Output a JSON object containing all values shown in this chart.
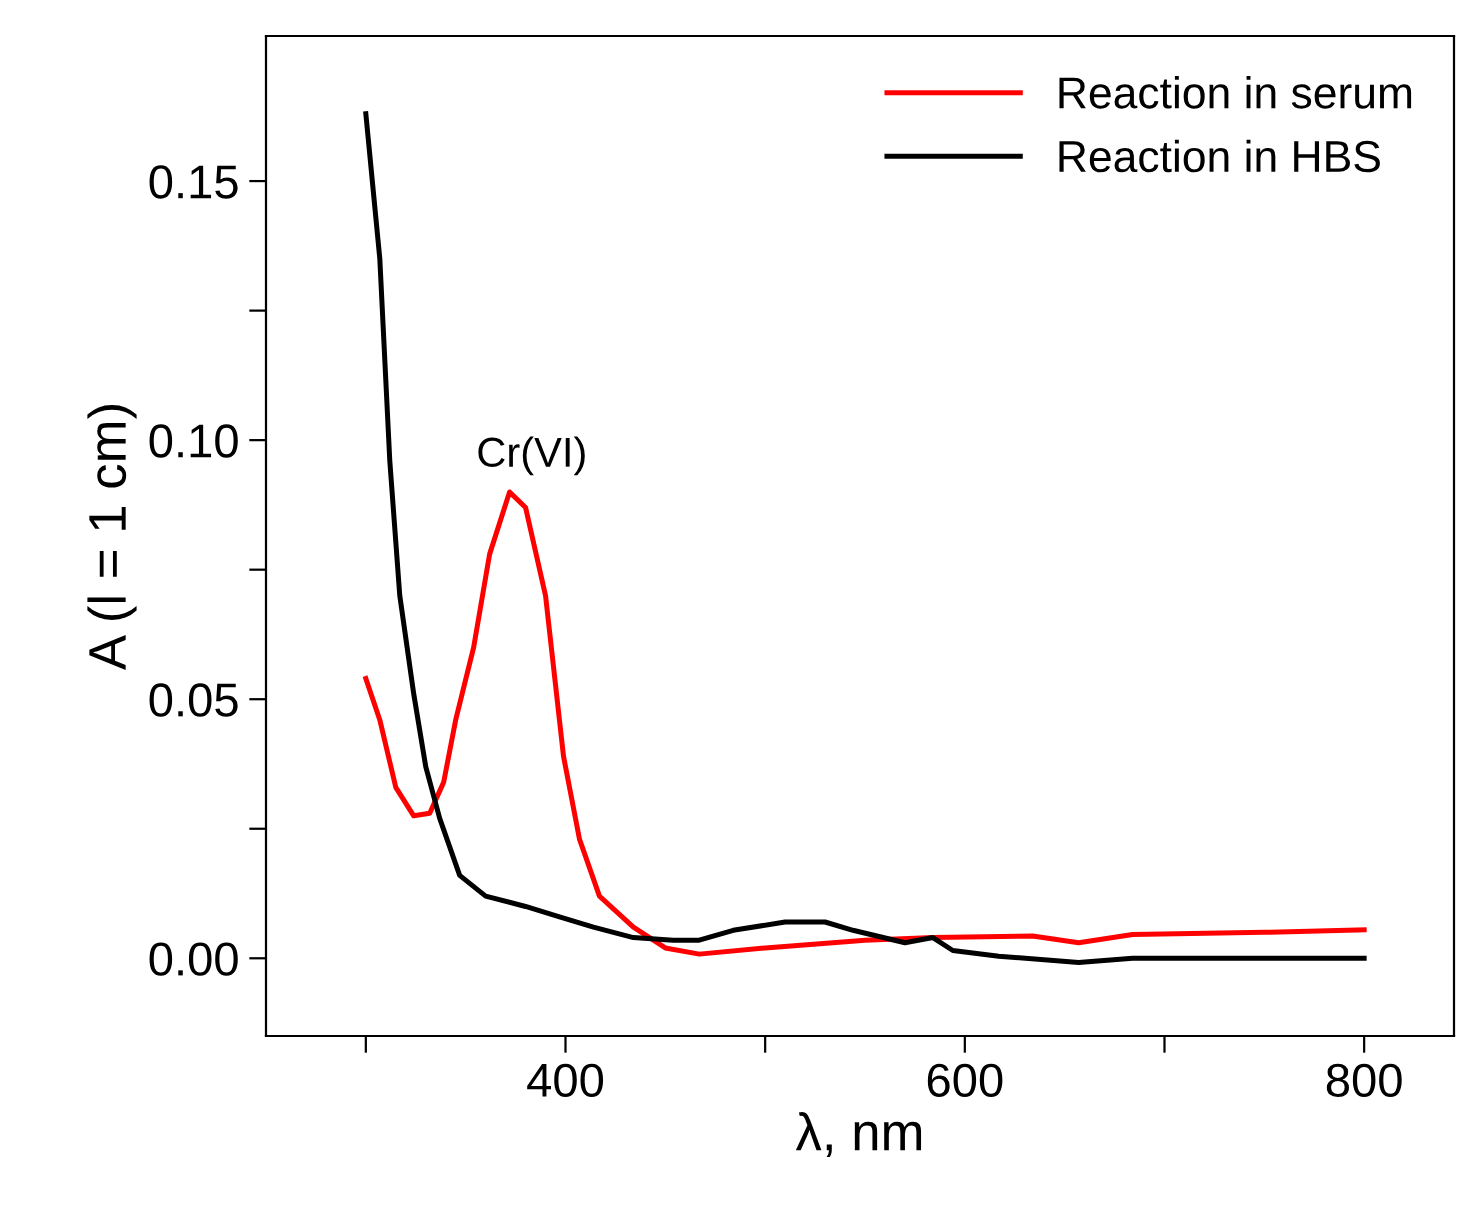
{
  "chart_data": {
    "type": "line",
    "xlabel": "λ, nm",
    "ylabel": "A (l = 1 cm)",
    "xlim": [
      250,
      845
    ],
    "ylim": [
      -0.015,
      0.178
    ],
    "xticks": [
      {
        "value": 300,
        "label": null
      },
      400,
      {
        "value": 500,
        "label": null
      },
      600,
      {
        "value": 700,
        "label": null
      },
      800
    ],
    "yticks": [
      {
        "value": 0,
        "label": "0.00"
      },
      {
        "value": 0.025,
        "label": null
      },
      0.05,
      {
        "value": 0.075,
        "label": null
      },
      {
        "value": 0.1,
        "label": "0.10"
      },
      {
        "value": 0.125,
        "label": null
      },
      0.15
    ],
    "grid": false,
    "legend": "top right",
    "marker": "none",
    "line_style": "solid",
    "annotations": [
      "Cr(VI)"
    ],
    "series": [
      {
        "name": "Reaction in serum",
        "color": "#ff0000",
        "x": [
          300,
          307,
          315,
          324,
          332,
          339,
          345,
          354,
          362,
          372,
          380,
          390,
          399,
          407,
          417,
          434,
          450,
          467,
          500,
          550,
          584,
          634,
          657,
          684,
          750,
          800
        ],
        "values": [
          0.054,
          0.046,
          0.033,
          0.0275,
          0.028,
          0.034,
          0.046,
          0.06,
          0.078,
          0.09,
          0.087,
          0.07,
          0.039,
          0.023,
          0.012,
          0.006,
          0.002,
          0.0008,
          0.002,
          0.0035,
          0.004,
          0.0043,
          0.003,
          0.0046,
          0.005,
          0.0055
        ]
      },
      {
        "name": "Reaction in HBS",
        "color": "#000000",
        "x": [
          300,
          307,
          312,
          317,
          324,
          330,
          337,
          347,
          360,
          380,
          397,
          414,
          434,
          454,
          467,
          484,
          510,
          530,
          544,
          570,
          584,
          594,
          617,
          657,
          684,
          717,
          750,
          800
        ],
        "values": [
          0.163,
          0.135,
          0.096,
          0.07,
          0.051,
          0.037,
          0.027,
          0.016,
          0.012,
          0.01,
          0.008,
          0.006,
          0.004,
          0.0035,
          0.0035,
          0.0054,
          0.007,
          0.007,
          0.0054,
          0.003,
          0.004,
          0.0015,
          0.0004,
          -0.0008,
          0.0,
          0.0,
          0.0,
          0.0
        ]
      }
    ]
  }
}
